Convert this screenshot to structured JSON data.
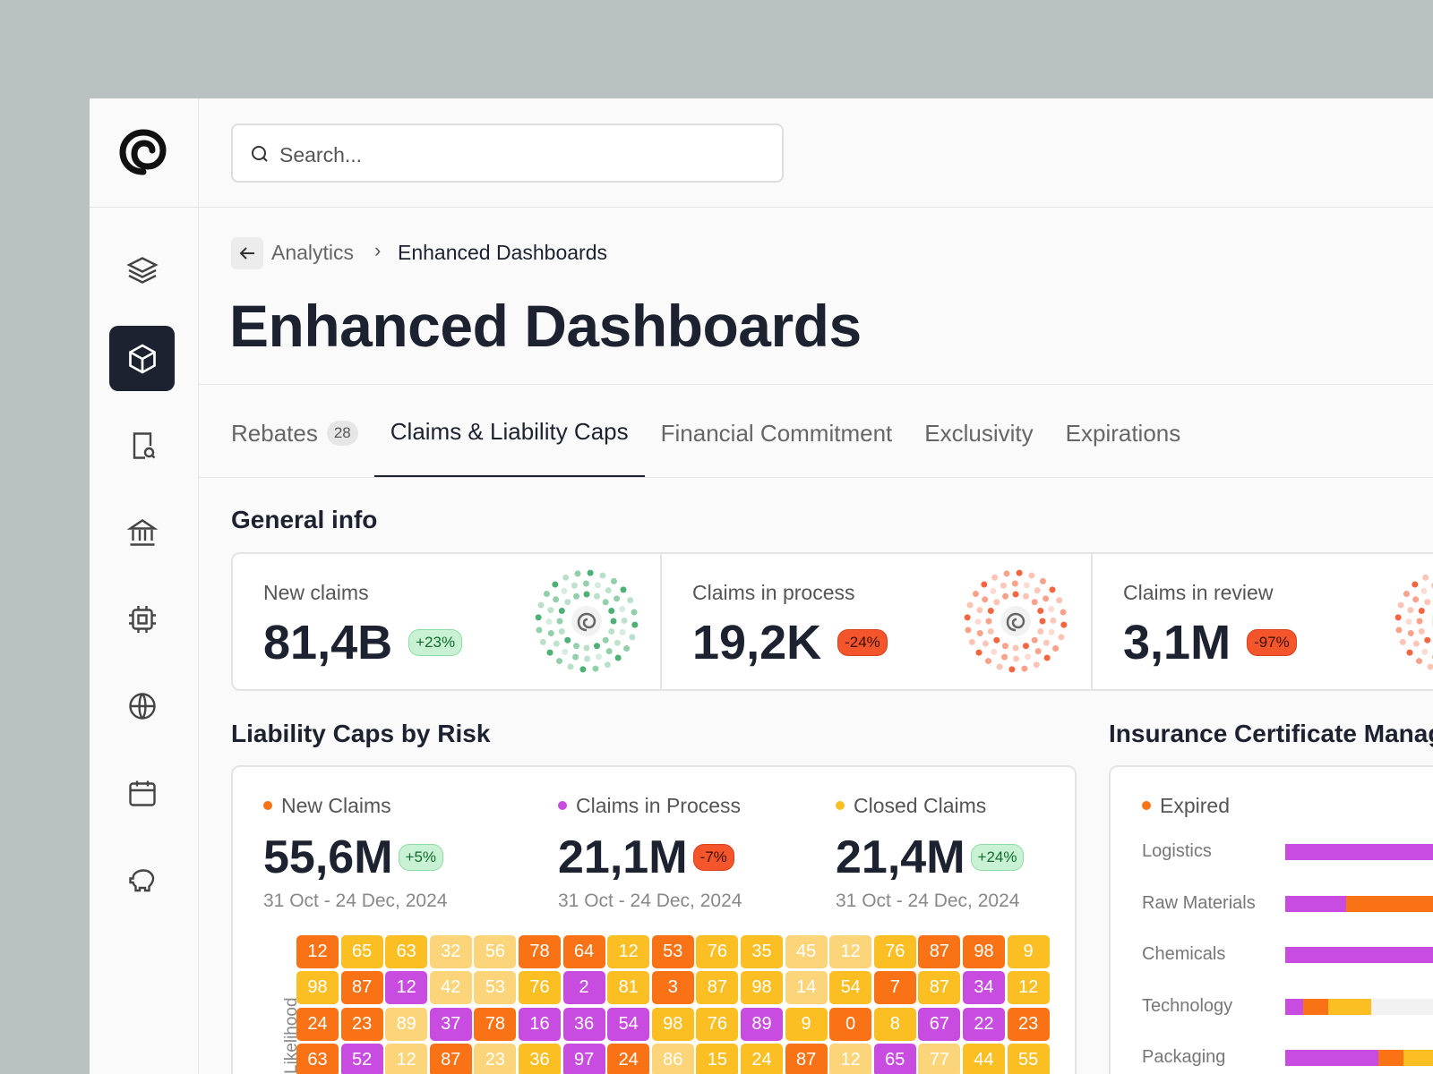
{
  "search": {
    "placeholder": "Search..."
  },
  "breadcrumb": {
    "parent": "Analytics",
    "current": "Enhanced Dashboards"
  },
  "title": "Enhanced Dashboards",
  "tabs": [
    {
      "label": "Rebates",
      "count": 28
    },
    {
      "label": "Claims & Liability Caps"
    },
    {
      "label": "Financial Commitment"
    },
    {
      "label": "Exclusivity"
    },
    {
      "label": "Expirations"
    }
  ],
  "active_tab": 1,
  "general_info": {
    "title": "General info",
    "cards": [
      {
        "label": "New claims",
        "value": "81,4B",
        "change": "+23%",
        "trend": "up",
        "ring_color": "#3aa765"
      },
      {
        "label": "Claims in process",
        "value": "19,2K",
        "change": "-24%",
        "trend": "down",
        "ring_color": "#f4552b"
      },
      {
        "label": "Claims in review",
        "value": "3,1M",
        "change": "-97%",
        "trend": "down",
        "ring_color": "#f4552b"
      }
    ]
  },
  "liability": {
    "title": "Liability Caps by Risk",
    "metrics": [
      {
        "label": "New Claims",
        "value": "55,6M",
        "change": "+5%",
        "trend": "up",
        "period": "31 Oct - 24 Dec, 2024",
        "color": "#f97316"
      },
      {
        "label": "Claims in Process",
        "value": "21,1M",
        "change": "-7%",
        "trend": "down",
        "period": "31 Oct - 24 Dec, 2024",
        "color": "#c94ce0"
      },
      {
        "label": "Closed Claims",
        "value": "21,4M",
        "change": "+24%",
        "trend": "up",
        "period": "31 Oct - 24 Dec, 2024",
        "color": "#fbbf24"
      }
    ],
    "heatmap": {
      "axis_label": "Likelihood",
      "palette": {
        "o": "#f97316",
        "y": "#fbbf24",
        "l": "#fcd57a",
        "p": "#c94ce0"
      },
      "rows": [
        [
          12,
          65,
          63,
          32,
          56,
          78,
          64,
          12,
          53,
          76,
          35,
          45,
          12,
          76,
          87,
          98,
          9
        ],
        [
          98,
          87,
          12,
          42,
          53,
          76,
          2,
          81,
          3,
          87,
          98,
          14,
          54,
          7,
          87,
          34,
          12
        ],
        [
          24,
          23,
          89,
          37,
          78,
          16,
          36,
          54,
          98,
          76,
          89,
          9,
          0,
          8,
          67,
          22,
          23
        ],
        [
          63,
          52,
          12,
          87,
          23,
          36,
          97,
          24,
          86,
          15,
          24,
          87,
          12,
          65,
          77,
          44,
          55
        ]
      ],
      "colors": [
        "oyyllooyoyyllyooy",
        "yopllypyoyylyoypy",
        "oolpopppyypyoyppo",
        "oplolypolyyolplyy"
      ]
    }
  },
  "insurance": {
    "title": "Insurance Certificate Management",
    "type": "bar",
    "stacked": true,
    "categories": [
      "Logistics",
      "Raw Materials",
      "Chemicals",
      "Technology",
      "Packaging"
    ],
    "series": [
      {
        "color": "#c94ce0",
        "values": [
          60,
          17,
          55,
          5,
          26
        ]
      },
      {
        "name": "Expired",
        "color": "#f97316",
        "values": [
          0,
          45,
          0,
          7,
          7
        ]
      },
      {
        "color": "#fbbf24",
        "values": [
          0,
          0,
          0,
          12,
          20
        ]
      }
    ],
    "xlim": [
      0,
      100
    ]
  }
}
